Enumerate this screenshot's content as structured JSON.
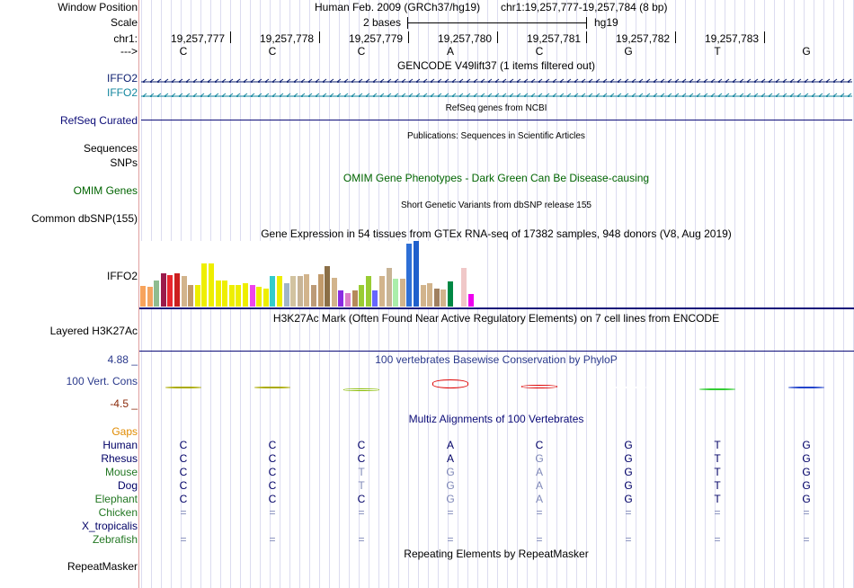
{
  "header": {
    "window_position_label": "Window Position",
    "assembly_text": "Human Feb. 2009 (GRCh37/hg19)",
    "position_text": "chr1:19,257,777-19,257,784 (8 bp)",
    "scale_label": "Scale",
    "scale_text": "2 bases",
    "scale_assembly": "hg19",
    "chrom_label": "chr1:",
    "strand_label": "--->",
    "coordinates": [
      "19,257,777",
      "19,257,778",
      "19,257,779",
      "19,257,780",
      "19,257,781",
      "19,257,782",
      "19,257,783"
    ],
    "bases": [
      "C",
      "C",
      "C",
      "A",
      "C",
      "G",
      "T",
      "G"
    ]
  },
  "tracks": {
    "gencode_title": "GENCODE V49lift37 (1 items filtered out)",
    "gencode_items": [
      "IFFO2",
      "IFFO2"
    ],
    "refseq_label": "RefSeq Curated",
    "refseq_title": "RefSeq genes from NCBI",
    "pubs_title": "Publications: Sequences in Scientific Articles",
    "sequences_label": "Sequences",
    "snps_label": "SNPs",
    "omim_title": "OMIM Gene Phenotypes - Dark Green Can Be Disease-causing",
    "omim_label": "OMIM Genes",
    "dbsnp_title": "Short Genetic Variants from dbSNP release 155",
    "dbsnp_label": "Common dbSNP(155)",
    "gtex_title": "Gene Expression in 54 tissues from GTEx RNA-seq of 17382 samples, 948 donors (V8, Aug 2019)",
    "gtex_label": "IFFO2",
    "h3k27_title": "H3K27Ac Mark (Often Found Near Active Regulatory Elements) on 7 cell lines from ENCODE",
    "h3k27_label": "Layered H3K27Ac",
    "phylop_title": "100 vertebrates Basewise Conservation by PhyloP",
    "phylop_max": "4.88 _",
    "phylop_label": "100 Vert. Cons",
    "phylop_min": "-4.5 _",
    "multiz_title": "Multiz Alignments of 100 Vertebrates",
    "gaps_label": "Gaps",
    "repeat_title": "Repeating Elements by RepeatMasker",
    "repeat_label": "RepeatMasker"
  },
  "gtex": {
    "bars": [
      {
        "value": 0.32,
        "color": "#f7a35c"
      },
      {
        "value": 0.3,
        "color": "#f4a460"
      },
      {
        "value": 0.4,
        "color": "#8fbc8f"
      },
      {
        "value": 0.5,
        "color": "#9b1b4b"
      },
      {
        "value": 0.48,
        "color": "#e8262e"
      },
      {
        "value": 0.5,
        "color": "#cc1f1f"
      },
      {
        "value": 0.46,
        "color": "#d2b48c"
      },
      {
        "value": 0.33,
        "color": "#c19a6b"
      },
      {
        "value": 0.33,
        "color": "#eeee00"
      },
      {
        "value": 0.66,
        "color": "#eeee00"
      },
      {
        "value": 0.66,
        "color": "#eeee00"
      },
      {
        "value": 0.4,
        "color": "#eeee00"
      },
      {
        "value": 0.4,
        "color": "#eeee00"
      },
      {
        "value": 0.33,
        "color": "#eeee00"
      },
      {
        "value": 0.33,
        "color": "#eeee00"
      },
      {
        "value": 0.36,
        "color": "#eeee00"
      },
      {
        "value": 0.33,
        "color": "#ee44ee"
      },
      {
        "value": 0.3,
        "color": "#eeee00"
      },
      {
        "value": 0.28,
        "color": "#eeee00"
      },
      {
        "value": 0.46,
        "color": "#33cccc"
      },
      {
        "value": 0.46,
        "color": "#eeee00"
      },
      {
        "value": 0.36,
        "color": "#a0b4c8"
      },
      {
        "value": 0.46,
        "color": "#d2c3a0"
      },
      {
        "value": 0.46,
        "color": "#c8b496"
      },
      {
        "value": 0.49,
        "color": "#d2b48c"
      },
      {
        "value": 0.33,
        "color": "#bc9b78"
      },
      {
        "value": 0.49,
        "color": "#c19a6b"
      },
      {
        "value": 0.61,
        "color": "#8b6f47"
      },
      {
        "value": 0.44,
        "color": "#d2b48c"
      },
      {
        "value": 0.25,
        "color": "#8a2be2"
      },
      {
        "value": 0.2,
        "color": "#dc7dc8"
      },
      {
        "value": 0.25,
        "color": "#b58a5a"
      },
      {
        "value": 0.33,
        "color": "#99cc33"
      },
      {
        "value": 0.46,
        "color": "#99cc33"
      },
      {
        "value": 0.25,
        "color": "#6666ff"
      },
      {
        "value": 0.46,
        "color": "#d2b48c"
      },
      {
        "value": 0.59,
        "color": "#c8b496"
      },
      {
        "value": 0.43,
        "color": "#aaeeaa"
      },
      {
        "value": 0.42,
        "color": "#d2b48c"
      },
      {
        "value": 0.96,
        "color": "#2e6fd6"
      },
      {
        "value": 1.0,
        "color": "#1f5fcc"
      },
      {
        "value": 0.33,
        "color": "#d2b48c"
      },
      {
        "value": 0.36,
        "color": "#d2b48c"
      },
      {
        "value": 0.28,
        "color": "#a08060"
      },
      {
        "value": 0.26,
        "color": "#d2b48c"
      },
      {
        "value": 0.38,
        "color": "#008844"
      },
      {
        "value": 0.2,
        "color": "#ffffff"
      },
      {
        "value": 0.59,
        "color": "#f0c8c8"
      },
      {
        "value": 0.19,
        "color": "#ee00ee"
      }
    ]
  },
  "phylop": {
    "values": [
      0.1,
      0.12,
      -0.5,
      1.9,
      0.8,
      0.0,
      -0.1,
      0.15
    ],
    "colors": [
      "#aaaa00",
      "#aaaa00",
      "#88bb00",
      "#dd0000",
      "#dd0000",
      "#ffffff",
      "#33cc33",
      "#2244cc"
    ]
  },
  "multiz": {
    "species": [
      {
        "name": "Human",
        "color": "#000066",
        "bases": [
          "C",
          "C",
          "C",
          "A",
          "C",
          "G",
          "T",
          "G"
        ],
        "dim": [
          false,
          false,
          false,
          false,
          false,
          false,
          false,
          false
        ]
      },
      {
        "name": "Rhesus",
        "color": "#000066",
        "bases": [
          "C",
          "C",
          "C",
          "A",
          "G",
          "G",
          "T",
          "G"
        ],
        "dim": [
          false,
          false,
          false,
          false,
          true,
          false,
          false,
          false
        ]
      },
      {
        "name": "Mouse",
        "color": "#227722",
        "bases": [
          "C",
          "C",
          "T",
          "G",
          "A",
          "G",
          "T",
          "G"
        ],
        "dim": [
          false,
          false,
          true,
          true,
          true,
          false,
          false,
          false
        ]
      },
      {
        "name": "Dog",
        "color": "#000066",
        "bases": [
          "C",
          "C",
          "T",
          "G",
          "A",
          "G",
          "T",
          "G"
        ],
        "dim": [
          false,
          false,
          true,
          true,
          true,
          false,
          false,
          false
        ]
      },
      {
        "name": "Elephant",
        "color": "#227722",
        "bases": [
          "C",
          "C",
          "C",
          "G",
          "A",
          "G",
          "T",
          "G"
        ],
        "dim": [
          false,
          false,
          false,
          true,
          true,
          false,
          false,
          false
        ]
      },
      {
        "name": "Chicken",
        "color": "#227722",
        "bases": [
          "=",
          "=",
          "=",
          "=",
          "=",
          "=",
          "=",
          "="
        ],
        "dim": [
          true,
          true,
          true,
          true,
          true,
          true,
          true,
          true
        ]
      },
      {
        "name": "X_tropicalis",
        "color": "#000066",
        "bases": [
          "",
          "",
          "",
          "",
          "",
          "",
          "",
          ""
        ],
        "dim": [
          true,
          true,
          true,
          true,
          true,
          true,
          true,
          true
        ]
      },
      {
        "name": "Zebrafish",
        "color": "#227722",
        "bases": [
          "=",
          "=",
          "=",
          "=",
          "=",
          "=",
          "=",
          "="
        ],
        "dim": [
          true,
          true,
          true,
          true,
          true,
          true,
          true,
          true
        ]
      }
    ]
  },
  "colors": {
    "gencode": "#0a1c6e",
    "gencode2": "#12869e",
    "refseq": "#0c0c78",
    "omim": "#006400",
    "phylop": "#2b3a8c",
    "phylop_min": "#8b2a0a",
    "gaps": "#e08a00",
    "multiz_title": "#0c0c78"
  }
}
